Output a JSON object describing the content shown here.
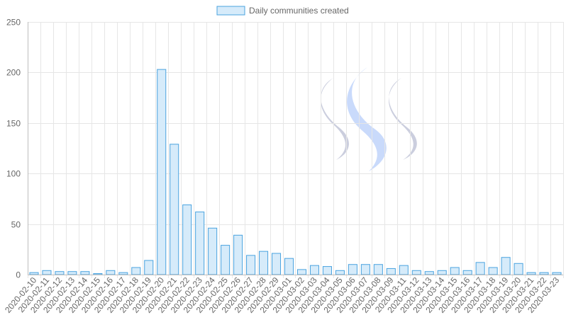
{
  "chart_data": {
    "type": "bar",
    "legend": {
      "label": "Daily communities created",
      "position": "top-center"
    },
    "categories": [
      "2020-02-10",
      "2020-02-11",
      "2020-02-12",
      "2020-02-13",
      "2020-02-14",
      "2020-02-15",
      "2020-02-16",
      "2020-02-17",
      "2020-02-18",
      "2020-02-19",
      "2020-02-20",
      "2020-02-21",
      "2020-02-22",
      "2020-02-23",
      "2020-02-24",
      "2020-02-25",
      "2020-02-26",
      "2020-02-27",
      "2020-02-28",
      "2020-02-29",
      "2020-03-01",
      "2020-03-02",
      "2020-03-03",
      "2020-03-04",
      "2020-03-05",
      "2020-03-06",
      "2020-03-07",
      "2020-03-08",
      "2020-03-09",
      "2020-03-11",
      "2020-03-12",
      "2020-03-13",
      "2020-03-14",
      "2020-03-15",
      "2020-03-16",
      "2020-03-17",
      "2020-03-18",
      "2020-03-19",
      "2020-03-20",
      "2020-03-21",
      "2020-03-22",
      "2020-03-23"
    ],
    "series": [
      {
        "name": "Daily communities created",
        "values": [
          2,
          4,
          3,
          3,
          3,
          1,
          4,
          2,
          7,
          14,
          203,
          129,
          69,
          62,
          46,
          29,
          39,
          19,
          23,
          21,
          16,
          5,
          9,
          8,
          4,
          10,
          10,
          10,
          6,
          9,
          4,
          3,
          4,
          7,
          4,
          12,
          7,
          17,
          11,
          2,
          2,
          2
        ]
      }
    ],
    "ylim": [
      0,
      250
    ],
    "yticks": [
      0,
      50,
      100,
      150,
      200,
      250
    ],
    "grid": true,
    "colors": {
      "bar_fill": "#d6ebfa",
      "bar_stroke": "#4aa3df",
      "grid": "#e6e6e6",
      "axis": "#bdbdbd",
      "tick_text": "#666666",
      "logo_light": "#cbd5f2",
      "logo_blue": "#c3d6fb",
      "logo_gray": "#b9bdd3"
    },
    "watermark": "steem-logo-icon"
  }
}
